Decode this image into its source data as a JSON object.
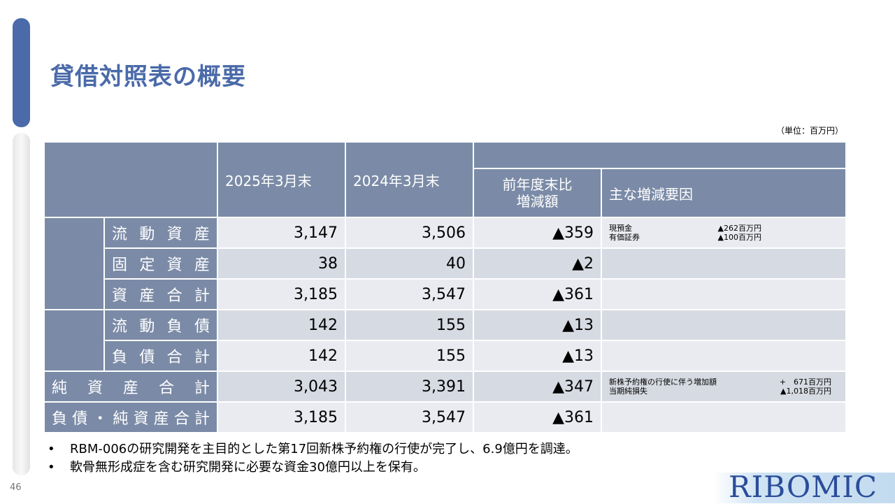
{
  "title": "貸借対照表の概要",
  "unit": "（単位：百万円）",
  "table": {
    "headers": {
      "col_2025": "2025年3月末",
      "col_2024": "2024年3月末",
      "col_diff": "前年度末比\n増減額",
      "col_factor": "主な増減要因"
    },
    "rows": [
      {
        "label": "流動資産",
        "v2025": "3,147",
        "v2024": "3,506",
        "diff": "▲359",
        "notes": [
          {
            "k": "現預金",
            "v": "▲262百万円"
          },
          {
            "k": "有価証券",
            "v": "▲100百万円"
          }
        ]
      },
      {
        "label": "固定資産",
        "v2025": "38",
        "v2024": "40",
        "diff": "▲2",
        "notes": []
      },
      {
        "label": "資産合計",
        "v2025": "3,185",
        "v2024": "3,547",
        "diff": "▲361",
        "notes": []
      },
      {
        "label": "流動負債",
        "v2025": "142",
        "v2024": "155",
        "diff": "▲13",
        "notes": []
      },
      {
        "label": "負債合計",
        "v2025": "142",
        "v2024": "155",
        "diff": "▲13",
        "notes": []
      },
      {
        "label": "純資産合計",
        "v2025": "3,043",
        "v2024": "3,391",
        "diff": "▲347",
        "notes": [
          {
            "k": "新株予約権の行使に伴う増加額",
            "v": "+　671百万円"
          },
          {
            "k": "当期純損失",
            "v": "▲1,018百万円"
          }
        ]
      },
      {
        "label": "負債・純資産合計",
        "v2025": "3,185",
        "v2024": "3,547",
        "diff": "▲361",
        "notes": []
      }
    ]
  },
  "bullets": [
    "RBM-006の研究開発を主目的とした第17回新株予約権の行使が完了し、6.9億円を調達。",
    "軟骨無形成症を含む研究開発に必要な資金30億円以上を保有。"
  ],
  "bullet_mark": "•",
  "page_number": "46",
  "logo": "RIBOMIC"
}
